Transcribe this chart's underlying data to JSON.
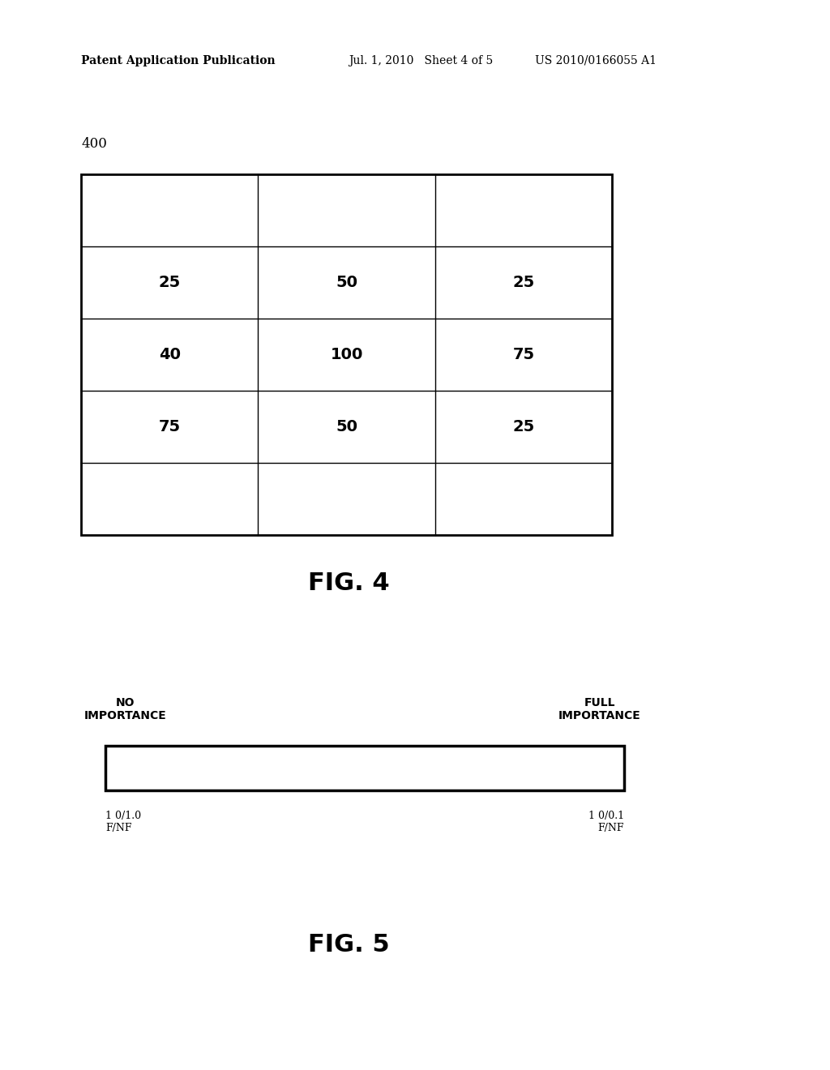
{
  "header_left": "Patent Application Publication",
  "header_mid": "Jul. 1, 2010   Sheet 4 of 5",
  "header_right": "US 2010/0166055 A1",
  "fig4_label": "400",
  "fig4_caption": "FIG. 4",
  "fig5_caption": "FIG. 5",
  "table_data": [
    [
      "",
      "",
      ""
    ],
    [
      "25",
      "50",
      "25"
    ],
    [
      "40",
      "100",
      "75"
    ],
    [
      "75",
      "50",
      "25"
    ],
    [
      "",
      "",
      ""
    ]
  ],
  "no_importance_label": "NO\nIMPORTANCE",
  "full_importance_label": "FULL\nIMPORTANCE",
  "bar_left_label": "1 0/1.0\nF/NF",
  "bar_right_label": "1 0/0.1\nF/NF",
  "background_color": "#ffffff",
  "text_color": "#000000",
  "line_color": "#000000"
}
